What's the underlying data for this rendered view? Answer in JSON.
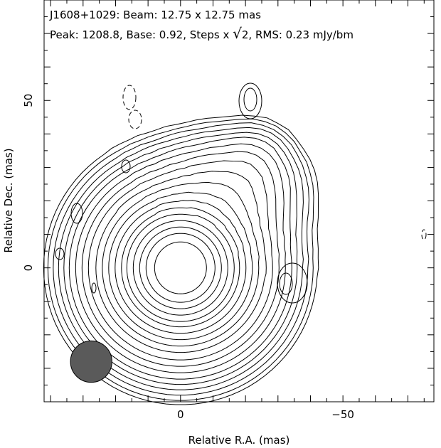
{
  "chart_data": {
    "type": "contour",
    "title_line1": "J1608+1029: Beam: 12.75 x 12.75 mas",
    "title_line2": {
      "prefix": "Peak: 1208.8, Base: 0.92, Steps x ",
      "sqrt_symbol": "√",
      "radicand": "2",
      "suffix": ", RMS: 0.23 mJy/bm"
    },
    "xlabel": "Relative R.A. (mas)",
    "ylabel": "Relative Dec. (mas)",
    "xlim": [
      42,
      -78
    ],
    "ylim": [
      -40,
      80
    ],
    "x_ticks": [
      {
        "value": 0,
        "label": "0"
      },
      {
        "value": -50,
        "label": "−50"
      }
    ],
    "y_ticks": [
      {
        "value": 0,
        "label": "0"
      },
      {
        "value": 50,
        "label": "50"
      }
    ],
    "peak": 1208.8,
    "base_contour": 0.92,
    "contour_step_factor": "sqrt(2)",
    "rms": 0.23,
    "units": "mJy/bm",
    "core_position": [
      0,
      0
    ],
    "beam": {
      "x": 27.5,
      "y": -28,
      "diameter": 12.75,
      "color": "#5a5a5a"
    },
    "contour_color": "#000000"
  }
}
